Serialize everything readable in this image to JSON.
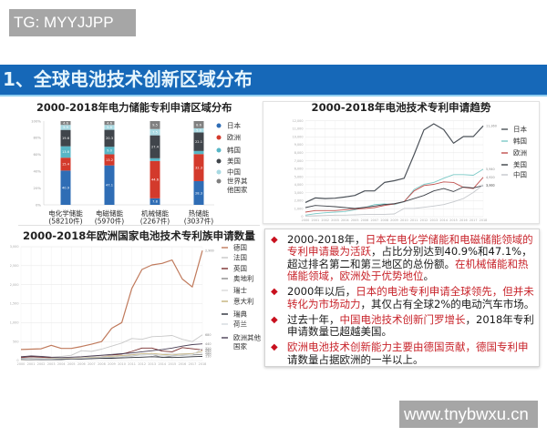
{
  "watermarks": {
    "top_left": "TG: MYYJJPP",
    "bottom_right": "www.tnybwxu.cn"
  },
  "header": {
    "title": "1、全球电池技术创新区域分布"
  },
  "theme": {
    "header_bg": "#1668b8",
    "highlight_text": "#c8242b",
    "bullet_marker": "#c8101e"
  },
  "chart_data": [
    {
      "type": "bar",
      "stacked": true,
      "title": "2000-2018年电力储能专利申请区域分布",
      "xlabel": "",
      "ylabel": "",
      "ylim": [
        0,
        100
      ],
      "yticks": [
        "0%",
        "20%",
        "40%",
        "60%",
        "80%",
        "100%"
      ],
      "grid": false,
      "legend_position": "right",
      "categories": [
        {
          "name": "电化学储能",
          "count": "(58210件)"
        },
        {
          "name": "电磁储能",
          "count": "(5970件)"
        },
        {
          "name": "机械储能",
          "count": "(2267件)"
        },
        {
          "name": "热储能",
          "count": "(3037件)"
        }
      ],
      "series": [
        {
          "name": "日本",
          "color": "#2f6db5",
          "values": [
            40.9,
            47.1,
            7.8,
            28.3
          ]
        },
        {
          "name": "欧洲",
          "color": "#d33a2c",
          "values": [
            15.4,
            13.2,
            44.6,
            32.3
          ]
        },
        {
          "name": "韩国",
          "color": "#58b6c6",
          "values": [
            13.6,
            9.0,
            3.2,
            3.7
          ]
        },
        {
          "name": "美国",
          "color": "#40454b",
          "values": [
            19.6,
            20.3,
            27.4,
            22.1
          ]
        },
        {
          "name": "中国",
          "color": "#a8d9e2",
          "values": [
            5.9,
            5.8,
            7.5,
            5.0
          ]
        },
        {
          "name": "世界其他国家",
          "color": "#808080",
          "values": [
            4.6,
            4.6,
            9.5,
            8.6
          ]
        }
      ]
    },
    {
      "type": "line",
      "title": "2000-2018年电池技术专利申请趋势",
      "xlabel": "",
      "ylabel": "",
      "x": [
        2000,
        2001,
        2002,
        2003,
        2004,
        2005,
        2006,
        2007,
        2008,
        2009,
        2010,
        2011,
        2012,
        2013,
        2014,
        2015,
        2016,
        2017,
        2018
      ],
      "ylim": [
        0,
        12000
      ],
      "ytick_step": 1000,
      "grid": true,
      "legend_position": "right",
      "series": [
        {
          "name": "日本",
          "color": "#4b5158",
          "width": 1.2,
          "values": [
            1780,
            2350,
            2270,
            2310,
            2460,
            2650,
            3220,
            3220,
            4280,
            4500,
            4810,
            7760,
            10860,
            11620,
            10900,
            9200,
            10030,
            10030,
            11360
          ]
        },
        {
          "name": "韩国",
          "color": "#7ccac7",
          "width": 0.9,
          "values": [
            190,
            380,
            490,
            570,
            640,
            870,
            1140,
            1510,
            1590,
            1510,
            1860,
            3410,
            4050,
            4280,
            4810,
            5260,
            5260,
            5190,
            5940
          ]
        },
        {
          "name": "欧洲",
          "color": "#c0504d",
          "width": 0.9,
          "values": [
            570,
            760,
            760,
            760,
            870,
            950,
            1020,
            1140,
            1400,
            1590,
            1890,
            3220,
            3900,
            4050,
            4350,
            4280,
            3670,
            3520,
            4920
          ]
        },
        {
          "name": "美国",
          "color": "#3c4047",
          "width": 0.9,
          "values": [
            1140,
            1400,
            1330,
            1250,
            1140,
            1020,
            1170,
            1330,
            1510,
            1630,
            1890,
            2270,
            2650,
            3220,
            3520,
            3140,
            3710,
            3600,
            3900
          ]
        },
        {
          "name": "中国",
          "color": "#c5c8cc",
          "width": 0.9,
          "values": [
            80,
            110,
            150,
            190,
            190,
            230,
            270,
            270,
            300,
            340,
            1020,
            1020,
            1170,
            1330,
            1510,
            1860,
            2270,
            3030,
            3980
          ]
        }
      ]
    },
    {
      "type": "line",
      "title": "2000-2018年欧洲国家电池技术专利族申请数量",
      "xlabel": "",
      "ylabel": "",
      "x": [
        2000,
        2001,
        2002,
        2003,
        2004,
        2005,
        2006,
        2007,
        2008,
        2009,
        2010,
        2011,
        2012,
        2013,
        2014,
        2015,
        2016,
        2017,
        2018
      ],
      "ylim": [
        0,
        3000
      ],
      "ytick_step": 500,
      "grid": true,
      "legend_position": "right",
      "series": [
        {
          "name": "德国",
          "color": "#c07a5c",
          "width": 1.2,
          "values": [
            290,
            300,
            310,
            400,
            320,
            320,
            370,
            430,
            500,
            850,
            1000,
            1900,
            2400,
            2520,
            2560,
            2650,
            2150,
            1940,
            2900
          ]
        },
        {
          "name": "法国",
          "color": "#c8c8c8",
          "width": 0.9,
          "values": [
            60,
            70,
            75,
            90,
            110,
            140,
            260,
            240,
            300,
            380,
            460,
            580,
            560,
            630,
            640,
            660,
            560,
            500,
            680
          ]
        },
        {
          "name": "英国",
          "color": "#7a2e2e",
          "width": 0.9,
          "values": [
            80,
            100,
            90,
            70,
            60,
            70,
            90,
            110,
            120,
            140,
            170,
            240,
            330,
            330,
            250,
            230,
            340,
            310,
            280
          ]
        },
        {
          "name": "奥地利",
          "color": "#8b8b8b",
          "width": 0.8,
          "values": [
            20,
            20,
            25,
            30,
            30,
            40,
            50,
            60,
            70,
            80,
            100,
            120,
            150,
            160,
            80,
            120,
            140,
            150,
            160
          ]
        },
        {
          "name": "瑞士",
          "color": "#d9d9d9",
          "width": 0.8,
          "values": [
            40,
            40,
            50,
            60,
            70,
            80,
            90,
            100,
            120,
            130,
            140,
            160,
            170,
            160,
            170,
            190,
            180,
            190,
            200
          ]
        },
        {
          "name": "意大利",
          "color": "#c5b27a",
          "width": 0.8,
          "values": [
            30,
            40,
            40,
            50,
            60,
            60,
            70,
            80,
            90,
            110,
            130,
            150,
            180,
            190,
            160,
            150,
            170,
            180,
            250
          ]
        },
        {
          "name": "瑞典",
          "color": "#2b2f38",
          "width": 0.9,
          "values": [
            40,
            40,
            30,
            30,
            30,
            40,
            40,
            50,
            60,
            60,
            70,
            80,
            90,
            100,
            90,
            80,
            90,
            100,
            110
          ]
        },
        {
          "name": "荷兰",
          "color": "#d4dadf",
          "width": 0.8,
          "values": [
            30,
            40,
            40,
            40,
            50,
            50,
            60,
            70,
            80,
            90,
            100,
            130,
            150,
            160,
            130,
            140,
            130,
            150,
            320
          ]
        },
        {
          "name": "欧洲其他国家",
          "color": "#4a3f55",
          "width": 0.9,
          "values": [
            100,
            120,
            110,
            90,
            80,
            90,
            100,
            120,
            140,
            160,
            180,
            200,
            230,
            260,
            290,
            330,
            380,
            420,
            440
          ]
        }
      ]
    }
  ],
  "summary": {
    "marker": "◆",
    "bullets": [
      {
        "segments": [
          {
            "text": "2000-2018年，",
            "hl": false
          },
          {
            "text": "日本在电化学储能和电磁储能领域的专利申请最为活跃",
            "hl": true
          },
          {
            "text": "，占比分别达到40.9%和47.1%，超过排名第二和第三地区的总份额。",
            "hl": false
          },
          {
            "text": "在机械储能和热储能领域，欧洲处于优势地位",
            "hl": true
          },
          {
            "text": "。",
            "hl": false
          }
        ]
      },
      {
        "segments": [
          {
            "text": "2000年以后，",
            "hl": false
          },
          {
            "text": "日本的电池专利申请全球领先，但并未转化为市场动力",
            "hl": true
          },
          {
            "text": "，其仅占有全球2%的电动汽车市场。",
            "hl": false
          }
        ]
      },
      {
        "segments": [
          {
            "text": "过去十年，",
            "hl": false
          },
          {
            "text": "中国电池技术创新门罗增长",
            "hl": true
          },
          {
            "text": "，2018年专利申请数量已超越美国。",
            "hl": false
          }
        ]
      },
      {
        "segments": [
          {
            "text": "欧洲电池技术创新能力主要由德国贡献，德国专利申",
            "hl": true
          },
          {
            "text": "请数量占据欧洲的一半以上。",
            "hl": false
          }
        ]
      }
    ]
  }
}
